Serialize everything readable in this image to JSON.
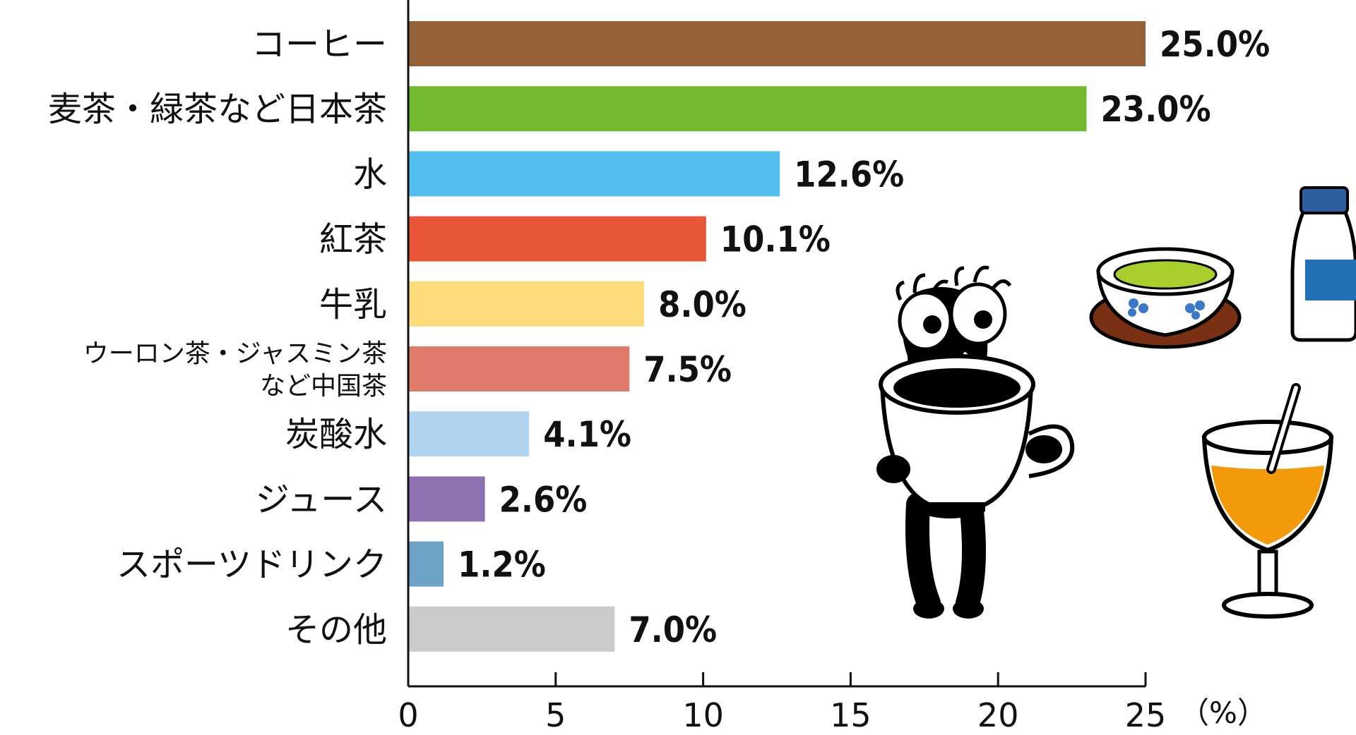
{
  "chart_data": {
    "type": "bar",
    "orientation": "horizontal",
    "categories": [
      [
        "コーヒー"
      ],
      [
        "麦茶・緑茶など日本茶"
      ],
      [
        "水"
      ],
      [
        "紅茶"
      ],
      [
        "牛乳"
      ],
      [
        "ウーロン茶・ジャスミン茶",
        "など中国茶"
      ],
      [
        "炭酸水"
      ],
      [
        "ジュース"
      ],
      [
        "スポーツドリンク"
      ],
      [
        "その他"
      ]
    ],
    "values": [
      25.0,
      23.0,
      12.6,
      10.1,
      8.0,
      7.5,
      4.1,
      2.6,
      1.2,
      7.0
    ],
    "value_labels": [
      "25.0%",
      "23.0%",
      "12.6%",
      "10.1%",
      "8.0%",
      "7.5%",
      "4.1%",
      "2.6%",
      "1.2%",
      "7.0%"
    ],
    "colors": [
      "#946236",
      "#72bb2e",
      "#52bfee",
      "#e85537",
      "#fddc7c",
      "#e07b6b",
      "#b1d5f0",
      "#8d72b1",
      "#6ba2c6",
      "#cbcbcb"
    ],
    "xlim": [
      0,
      25
    ],
    "xticks": [
      0,
      5,
      10,
      15,
      20,
      25
    ],
    "xtick_labels": [
      "0",
      "5",
      "10",
      "15",
      "20",
      "25"
    ],
    "unit_label": "（%）",
    "grid": false,
    "legend": "none"
  },
  "illustrations": [
    "character-with-coffee-cup-icon",
    "teacup-icon",
    "milk-bottle-icon",
    "juice-glass-icon"
  ]
}
